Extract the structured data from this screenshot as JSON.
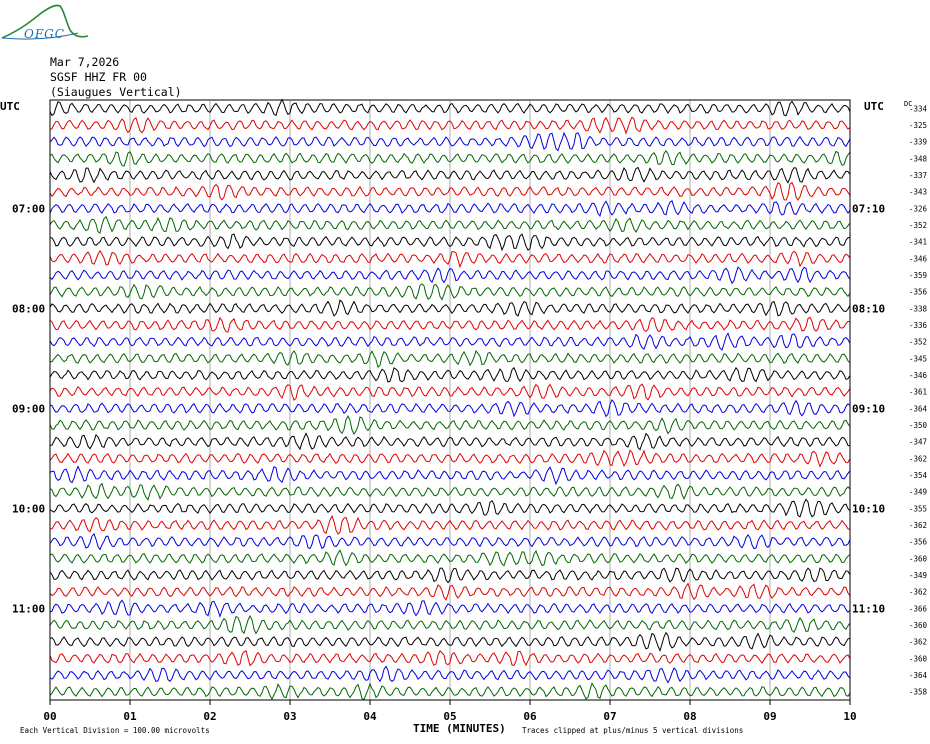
{
  "header": {
    "logo_text": "OFGC",
    "date": "Mar 7,2026",
    "station": "SGSF HHZ FR 00",
    "site": "(Siaugues Vertical)"
  },
  "chart_data": {
    "type": "line",
    "title": "",
    "xlabel": "TIME (MINUTES)",
    "ylabel": "",
    "xlim": [
      0,
      10
    ],
    "x_ticks": [
      "00",
      "01",
      "02",
      "03",
      "04",
      "05",
      "06",
      "07",
      "08",
      "09",
      "10"
    ],
    "left_axis_label": "UTC",
    "right_axis_label": "UTC",
    "dc_label": "DC",
    "left_time_labels": [
      "07:00",
      "08:00",
      "09:00",
      "10:00",
      "11:00"
    ],
    "right_time_labels": [
      "07:10",
      "08:10",
      "09:10",
      "10:10",
      "11:10"
    ],
    "dc_offsets": [
      -334,
      -325,
      -339,
      -348,
      -337,
      -343,
      -326,
      -352,
      -341,
      -346,
      -359,
      -356,
      -338,
      -336,
      -352,
      -345,
      -346,
      -361,
      -364,
      -350,
      -347,
      -362,
      -354,
      -349,
      -355,
      -362,
      -356,
      -360,
      -349,
      -362,
      -366,
      -360,
      -362,
      -360,
      -364,
      -358
    ],
    "trace_colors": [
      "#000000",
      "#e00000",
      "#0000e0",
      "#006600"
    ],
    "trace_count": 36,
    "minutes_per_trace": 10,
    "grid": true,
    "footer_left": "Each Vertical Division =  100.00 microvolts",
    "footer_right": "Traces clipped at plus/minus 5 vertical divisions"
  }
}
